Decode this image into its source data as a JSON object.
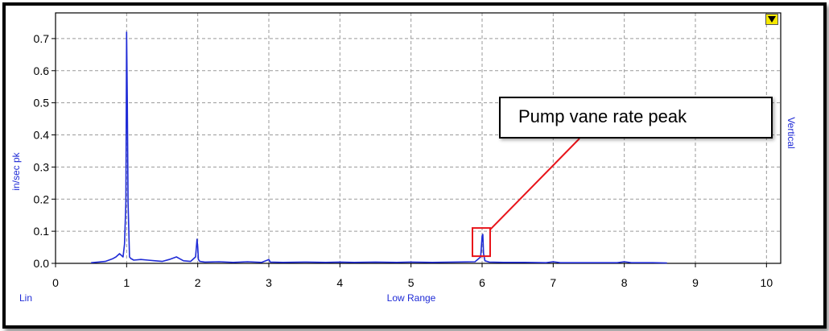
{
  "chart_data": {
    "type": "line",
    "title": "",
    "xlabel": "Low Range",
    "ylabel": "in/sec pk",
    "scale_label": "Lin",
    "direction_label": "Vertical",
    "xlim": [
      0,
      10.2
    ],
    "ylim": [
      0,
      0.78
    ],
    "x_ticks": [
      0,
      1,
      2,
      3,
      4,
      5,
      6,
      7,
      8,
      9,
      10
    ],
    "y_ticks": [
      0.0,
      0.1,
      0.2,
      0.3,
      0.4,
      0.5,
      0.6,
      0.7
    ],
    "y_tick_labels": [
      "0.0",
      "0.1",
      "0.2",
      "0.3",
      "0.4",
      "0.5",
      "0.6",
      "0.7"
    ],
    "grid": true,
    "series_color": "#1f2bd6",
    "series": [
      {
        "name": "",
        "x": [
          0.5,
          0.6,
          0.7,
          0.75,
          0.8,
          0.85,
          0.9,
          0.95,
          0.97,
          0.99,
          1.0,
          1.01,
          1.02,
          1.04,
          1.06,
          1.1,
          1.2,
          1.3,
          1.4,
          1.5,
          1.6,
          1.7,
          1.75,
          1.8,
          1.9,
          1.97,
          1.99,
          2.0,
          2.01,
          2.03,
          2.1,
          2.3,
          2.5,
          2.7,
          2.9,
          2.98,
          3.0,
          3.02,
          3.2,
          3.5,
          3.8,
          4.0,
          4.2,
          4.5,
          4.8,
          5.0,
          5.3,
          5.6,
          5.9,
          5.98,
          6.0,
          6.01,
          6.02,
          6.04,
          6.1,
          6.3,
          6.6,
          6.9,
          7.0,
          7.1,
          7.5,
          7.9,
          8.0,
          8.1,
          8.4,
          8.6
        ],
        "values": [
          0.002,
          0.004,
          0.006,
          0.01,
          0.014,
          0.02,
          0.03,
          0.02,
          0.06,
          0.19,
          0.72,
          0.5,
          0.19,
          0.02,
          0.015,
          0.01,
          0.012,
          0.01,
          0.008,
          0.006,
          0.012,
          0.02,
          0.014,
          0.008,
          0.006,
          0.02,
          0.075,
          0.05,
          0.012,
          0.006,
          0.004,
          0.005,
          0.003,
          0.005,
          0.003,
          0.01,
          0.012,
          0.004,
          0.003,
          0.004,
          0.003,
          0.004,
          0.003,
          0.004,
          0.003,
          0.004,
          0.003,
          0.004,
          0.005,
          0.02,
          0.085,
          0.09,
          0.03,
          0.008,
          0.004,
          0.003,
          0.003,
          0.002,
          0.005,
          0.002,
          0.002,
          0.002,
          0.005,
          0.002,
          0.002,
          0.001
        ]
      }
    ],
    "annotation": {
      "text": "Pump vane rate peak",
      "x": 6.0,
      "y": 0.085,
      "box_color": "#e8141a"
    }
  },
  "controls": {
    "menu_icon": "triangle-down-icon",
    "menu_color": "#f5e800"
  }
}
